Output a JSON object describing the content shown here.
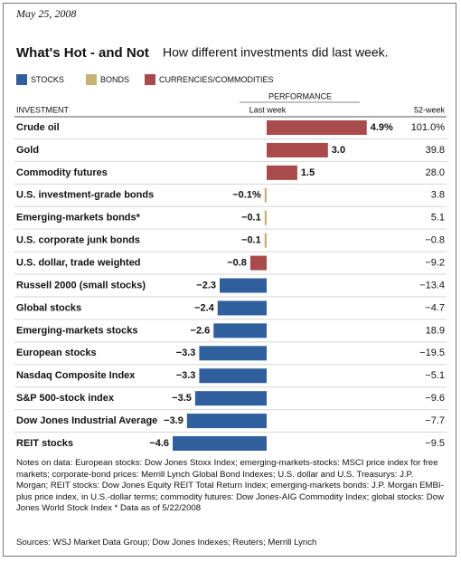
{
  "date": "May 25, 2008",
  "chart_data": {
    "type": "bar",
    "title": "What's Hot - and Not",
    "subtitle": "How different investments did last week.",
    "group_header": "PERFORMANCE",
    "category_header": "INVESTMENT",
    "value_header": "Last week",
    "week_52_header": "52-week",
    "categories": [
      "Crude oil",
      "Gold",
      "Commodity futures",
      "U.S. investment-grade bonds",
      "Emerging-markets bonds*",
      "U.S. corporate junk bonds",
      "U.S. dollar, trade weighted",
      "Russell 2000 (small stocks)",
      "Global stocks",
      "Emerging-markets stocks",
      "European stocks",
      "Nasdaq Composite Index",
      "S&P 500-stock index",
      "Dow Jones Industrial Average",
      "REIT stocks"
    ],
    "series": [
      {
        "name": "STOCKS",
        "color": "#2f5f9c",
        "values": [
          null,
          null,
          null,
          null,
          null,
          null,
          null,
          -2.3,
          -2.4,
          -2.6,
          -3.3,
          -3.3,
          -3.5,
          -3.9,
          -4.6
        ],
        "value_labels": [
          null,
          null,
          null,
          null,
          null,
          null,
          null,
          "−2.3",
          "−2.4",
          "−2.6",
          "−3.3",
          "−3.3",
          "−3.5",
          "−3.9",
          "−4.6"
        ]
      },
      {
        "name": "BONDS",
        "color": "#c9b176",
        "values": [
          null,
          null,
          null,
          -0.1,
          -0.1,
          -0.1,
          null,
          null,
          null,
          null,
          null,
          null,
          null,
          null,
          null
        ],
        "value_labels": [
          null,
          null,
          null,
          "−0.1%",
          "−0.1",
          "−0.1",
          null,
          null,
          null,
          null,
          null,
          null,
          null,
          null,
          null
        ]
      },
      {
        "name": "CURRENCIES/COMMODITIES",
        "color": "#a94a4c",
        "values": [
          4.9,
          3.0,
          1.5,
          null,
          null,
          null,
          -0.8,
          null,
          null,
          null,
          null,
          null,
          null,
          null,
          null
        ],
        "value_labels": [
          "4.9%",
          "3.0",
          "1.5",
          null,
          null,
          null,
          "−0.8",
          null,
          null,
          null,
          null,
          null,
          null,
          null,
          null
        ]
      }
    ],
    "week_52": [
      "101.0%",
      "39.8",
      "28.0",
      "3.8",
      "5.1",
      "−0.8",
      "−9.2",
      "−13.4",
      "−4.7",
      "18.9",
      "−19.5",
      "−5.1",
      "−9.6",
      "−7.7",
      "−9.5"
    ]
  },
  "notes": "Notes on data: European stocks: Dow Jones Stoxx Index; emerging-markets-stocks: MSCI price index for free markets; corporate-bond prices: Merrill Lynch Global Bond Indexes; U.S. dollar and U.S. Treasurys: J.P. Morgan; REIT stocks: Dow Jones Equity REIT Total Return Index; emerging-markets bonds: J.P. Morgan EMBI-plus price index, in U.S.-dollar terms; commodity futures: Dow Jones-AIG Commodity Index; global stocks: Dow Jones World Stock Index  * Data as of 5/22/2008",
  "sources": "Sources: WSJ Market Data Group; Dow Jones Indexes; Reuters; Merrill Lynch"
}
